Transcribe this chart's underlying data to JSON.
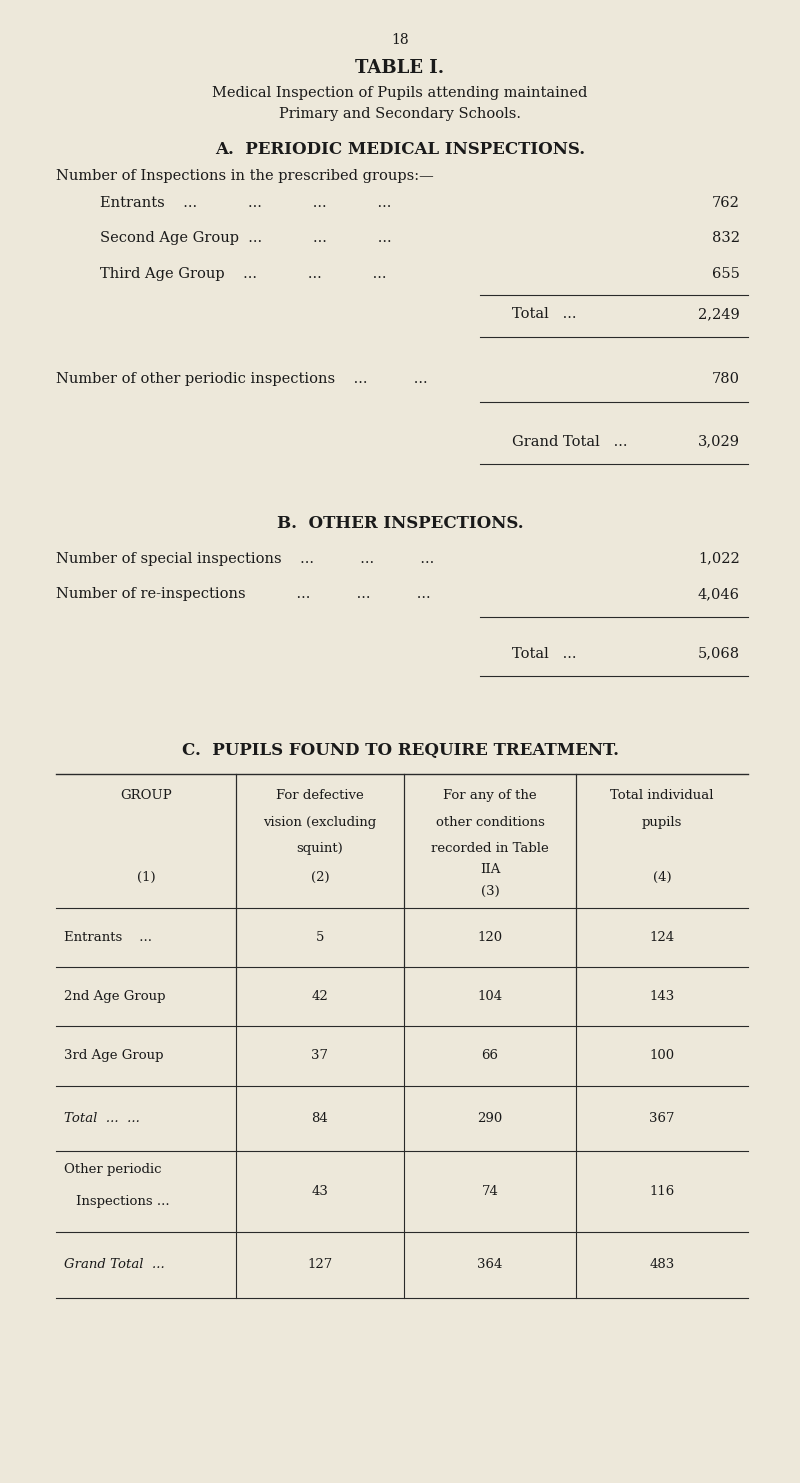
{
  "bg_color": "#ede8da",
  "text_color": "#1a1a1a",
  "page_number": "18",
  "title": "TABLE I.",
  "subtitle_line1": "Medical Inspection of Pupils attending maintained",
  "subtitle_line2": "Primary and Secondary Schools.",
  "section_a_title": "A.  PERIODIC MEDICAL INSPECTIONS.",
  "section_a_intro": "Number of Inspections in the prescribed groups:—",
  "section_a_rows": [
    [
      "Entrants    ...           ...           ...           ...     ",
      "762"
    ],
    [
      "Second Age Group  ...           ...           ...     ",
      "832"
    ],
    [
      "Third Age Group    ...           ...           ...     ",
      "655"
    ]
  ],
  "total_a_label": "Total   ...",
  "total_a_value": "2,249",
  "other_periodic_label": "Number of other periodic inspections    ...          ...     ",
  "other_periodic_value": "780",
  "grand_total_a_label": "Grand Total   ...",
  "grand_total_a_value": "3,029",
  "section_b_title": "B.  OTHER INSPECTIONS.",
  "section_b_rows": [
    [
      "Number of special inspections    ...          ...          ...   ",
      "1,022"
    ],
    [
      "Number of re-inspections           ...          ...          ...   ",
      "4,046"
    ]
  ],
  "total_b_label": "Total   ...",
  "total_b_value": "5,068",
  "section_c_title": "C.  PUPILS FOUND TO REQUIRE TREATMENT.",
  "col_boundaries": [
    0.07,
    0.295,
    0.505,
    0.72,
    0.935
  ],
  "col_header_line1": [
    "GROUP",
    "For defective",
    "For any of the",
    "Total individual"
  ],
  "col_header_line2": [
    "",
    "vision (excluding",
    "other conditions",
    "pupils"
  ],
  "col_header_line3": [
    "",
    "squint)",
    "recorded in Table",
    ""
  ],
  "col_header_line4": [
    "",
    "",
    "IIA",
    ""
  ],
  "col_header_num": [
    "(1)",
    "(2)",
    "(3)",
    "(4)"
  ],
  "table_rows": [
    [
      "Entrants    ...",
      "5",
      "120",
      "124",
      false
    ],
    [
      "2nd Age Group",
      "42",
      "104",
      "143",
      false
    ],
    [
      "3rd Age Group",
      "37",
      "66",
      "100",
      false
    ],
    [
      "Total  ...  ...",
      "84",
      "290",
      "367",
      true
    ],
    [
      "Other periodic\nInspections ...",
      "43",
      "74",
      "116",
      false
    ],
    [
      "Grand Total  ...",
      "127",
      "364",
      "483",
      true
    ]
  ]
}
